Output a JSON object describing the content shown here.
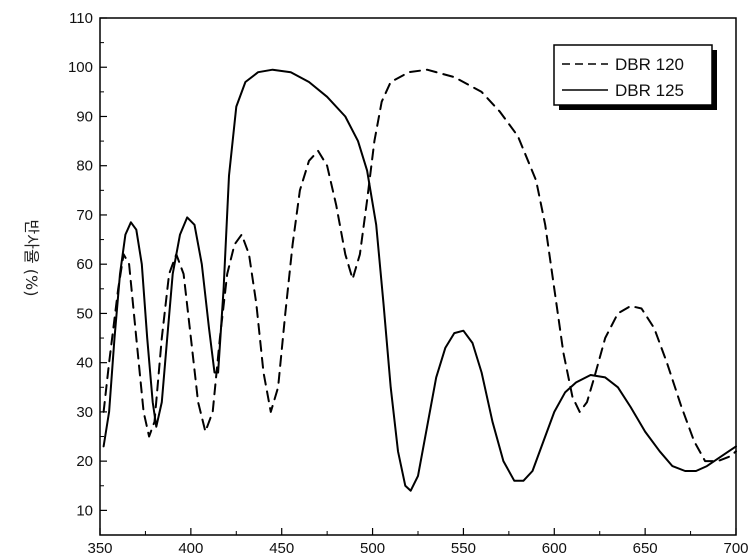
{
  "chart_data": {
    "type": "line",
    "title": "",
    "xlabel": "",
    "ylabel": "반사율 (%)",
    "xlim": [
      350,
      700
    ],
    "ylim": [
      5,
      110
    ],
    "x_ticks": [
      350,
      400,
      450,
      500,
      550,
      600,
      650,
      700
    ],
    "y_ticks": [
      10,
      20,
      30,
      40,
      50,
      60,
      70,
      80,
      90,
      100,
      110
    ],
    "grid": false,
    "legend_position": "top-right",
    "series": [
      {
        "name": "DBR 120",
        "style": "dashed",
        "color": "#000000",
        "points": [
          [
            352,
            30
          ],
          [
            355,
            40
          ],
          [
            360,
            55
          ],
          [
            363,
            62
          ],
          [
            366,
            60
          ],
          [
            370,
            45
          ],
          [
            374,
            30
          ],
          [
            377,
            25
          ],
          [
            380,
            28
          ],
          [
            384,
            45
          ],
          [
            388,
            58
          ],
          [
            392,
            62
          ],
          [
            396,
            58
          ],
          [
            400,
            45
          ],
          [
            404,
            32
          ],
          [
            408,
            26
          ],
          [
            412,
            30
          ],
          [
            416,
            45
          ],
          [
            420,
            58
          ],
          [
            424,
            64
          ],
          [
            428,
            66
          ],
          [
            432,
            62
          ],
          [
            436,
            52
          ],
          [
            440,
            38
          ],
          [
            444,
            30
          ],
          [
            448,
            35
          ],
          [
            452,
            50
          ],
          [
            456,
            64
          ],
          [
            460,
            75
          ],
          [
            465,
            81
          ],
          [
            470,
            83
          ],
          [
            475,
            80
          ],
          [
            480,
            72
          ],
          [
            485,
            62
          ],
          [
            489,
            57
          ],
          [
            493,
            62
          ],
          [
            497,
            73
          ],
          [
            501,
            85
          ],
          [
            505,
            93
          ],
          [
            510,
            97
          ],
          [
            520,
            99
          ],
          [
            530,
            99.5
          ],
          [
            545,
            98
          ],
          [
            560,
            95
          ],
          [
            570,
            91
          ],
          [
            580,
            86
          ],
          [
            590,
            77
          ],
          [
            595,
            68
          ],
          [
            600,
            55
          ],
          [
            605,
            42
          ],
          [
            610,
            33
          ],
          [
            614,
            30
          ],
          [
            618,
            32
          ],
          [
            622,
            37
          ],
          [
            628,
            45
          ],
          [
            635,
            50
          ],
          [
            642,
            51.5
          ],
          [
            648,
            51
          ],
          [
            655,
            47
          ],
          [
            662,
            40
          ],
          [
            670,
            31
          ],
          [
            677,
            24
          ],
          [
            683,
            20
          ],
          [
            690,
            20
          ],
          [
            697,
            21
          ],
          [
            700,
            22
          ]
        ]
      },
      {
        "name": "DBR 125",
        "style": "solid",
        "color": "#000000",
        "points": [
          [
            352,
            23
          ],
          [
            355,
            30
          ],
          [
            358,
            45
          ],
          [
            361,
            58
          ],
          [
            364,
            66
          ],
          [
            367,
            68.5
          ],
          [
            370,
            67
          ],
          [
            373,
            60
          ],
          [
            376,
            45
          ],
          [
            379,
            32
          ],
          [
            381,
            27
          ],
          [
            384,
            32
          ],
          [
            387,
            45
          ],
          [
            390,
            58
          ],
          [
            394,
            66
          ],
          [
            398,
            69.5
          ],
          [
            402,
            68
          ],
          [
            406,
            60
          ],
          [
            410,
            47
          ],
          [
            413,
            38
          ],
          [
            415,
            38
          ],
          [
            418,
            55
          ],
          [
            421,
            78
          ],
          [
            425,
            92
          ],
          [
            430,
            97
          ],
          [
            437,
            99
          ],
          [
            445,
            99.5
          ],
          [
            455,
            99
          ],
          [
            465,
            97
          ],
          [
            475,
            94
          ],
          [
            485,
            90
          ],
          [
            492,
            85
          ],
          [
            497,
            79
          ],
          [
            502,
            68
          ],
          [
            506,
            52
          ],
          [
            510,
            35
          ],
          [
            514,
            22
          ],
          [
            518,
            15
          ],
          [
            521,
            14
          ],
          [
            525,
            17
          ],
          [
            530,
            27
          ],
          [
            535,
            37
          ],
          [
            540,
            43
          ],
          [
            545,
            46
          ],
          [
            550,
            46.5
          ],
          [
            555,
            44
          ],
          [
            560,
            38
          ],
          [
            566,
            28
          ],
          [
            572,
            20
          ],
          [
            578,
            16
          ],
          [
            583,
            16
          ],
          [
            588,
            18
          ],
          [
            594,
            24
          ],
          [
            600,
            30
          ],
          [
            606,
            34
          ],
          [
            612,
            36
          ],
          [
            620,
            37.5
          ],
          [
            628,
            37
          ],
          [
            635,
            35
          ],
          [
            642,
            31
          ],
          [
            650,
            26
          ],
          [
            658,
            22
          ],
          [
            665,
            19
          ],
          [
            672,
            18
          ],
          [
            678,
            18
          ],
          [
            684,
            19
          ],
          [
            690,
            20.5
          ],
          [
            696,
            22
          ],
          [
            700,
            23
          ]
        ]
      }
    ]
  }
}
